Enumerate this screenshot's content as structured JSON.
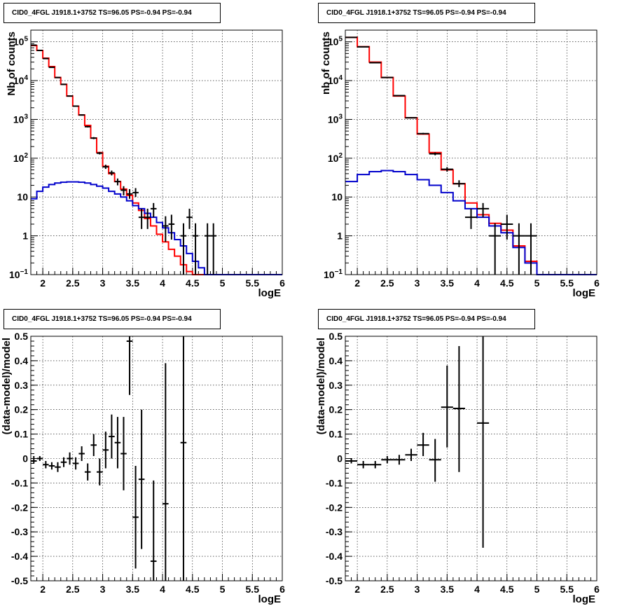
{
  "colors": {
    "data": "#000000",
    "total_model": "#ff0000",
    "source_model": "#0000cc",
    "grid": "#000000",
    "frame": "#000000"
  },
  "chart_data": [
    {
      "type": "line",
      "panel": "top-left",
      "title": "CID0_4FGL J1918.1+3752 TS=96.05 PS=-0.94 PS=-0.94",
      "xlabel": "logE",
      "ylabel": "Nb of counts",
      "xlim": [
        1.8,
        6
      ],
      "ylim": [
        0.1,
        200000
      ],
      "log_y": true,
      "grid": true,
      "x_ticks": [
        "2",
        "2.5",
        "3",
        "3.5",
        "4",
        "4.5",
        "5",
        "5.5",
        "6"
      ],
      "y_ticks": [
        "10^-1",
        "1",
        "10",
        "10^2",
        "10^3",
        "10^4",
        "10^5"
      ],
      "bin_edges": [
        1.8,
        1.9,
        2.0,
        2.1,
        2.2,
        2.3,
        2.4,
        2.5,
        2.6,
        2.7,
        2.8,
        2.9,
        3.0,
        3.1,
        3.2,
        3.3,
        3.4,
        3.5,
        3.6,
        3.7,
        3.8,
        3.9,
        4.0,
        4.1,
        4.2,
        4.3,
        4.4,
        4.5,
        4.6,
        4.7,
        4.8,
        4.9,
        5.0,
        5.1,
        5.2,
        5.3,
        5.4,
        5.5,
        5.6,
        5.7,
        5.8,
        5.9,
        6.0
      ],
      "series": [
        {
          "kind": "step",
          "color": "total_model",
          "values": [
            80000,
            60000,
            38000,
            23000,
            12000,
            8000,
            4000,
            2200,
            1300,
            700,
            330,
            140,
            62,
            40,
            25,
            16,
            11,
            7,
            4.5,
            2.8,
            1.8,
            1.1,
            0.7,
            0.45,
            0.3,
            0.18,
            0.12,
            0.1,
            0.1,
            0.1,
            0.1,
            0.1,
            0.1,
            0.1,
            0.1,
            0.1,
            0.1,
            0.1,
            0.1,
            0.1,
            0.1,
            0.1
          ]
        },
        {
          "kind": "step",
          "color": "source_model",
          "values": [
            9,
            14,
            18,
            21,
            23,
            24,
            24.5,
            24.5,
            24,
            23,
            21,
            19,
            17,
            14,
            12,
            10,
            8,
            6,
            5,
            3.8,
            3,
            2.2,
            1.6,
            1.2,
            0.8,
            0.55,
            0.35,
            0.22,
            0.15,
            0.1,
            0.1,
            0.1,
            0.1,
            0.1,
            0.1,
            0.1,
            0.1,
            0.1,
            0.1,
            0.1,
            0.1,
            0.1
          ]
        },
        {
          "kind": "errorbar",
          "color": "data",
          "points": [
            {
              "x": 1.85,
              "y": 82000,
              "lo": 81000,
              "hi": 83000
            },
            {
              "x": 1.95,
              "y": 60000,
              "lo": 59000,
              "hi": 61000
            },
            {
              "x": 2.05,
              "y": 37000,
              "lo": 36000,
              "hi": 38000
            },
            {
              "x": 2.15,
              "y": 22000,
              "lo": 21500,
              "hi": 22500
            },
            {
              "x": 2.25,
              "y": 12000,
              "lo": 11700,
              "hi": 12300
            },
            {
              "x": 2.35,
              "y": 8000,
              "lo": 7800,
              "hi": 8200
            },
            {
              "x": 2.45,
              "y": 4000,
              "lo": 3900,
              "hi": 4100
            },
            {
              "x": 2.55,
              "y": 2200,
              "lo": 2150,
              "hi": 2250
            },
            {
              "x": 2.65,
              "y": 1300,
              "lo": 1250,
              "hi": 1350
            },
            {
              "x": 2.75,
              "y": 650,
              "lo": 620,
              "hi": 680
            },
            {
              "x": 2.85,
              "y": 330,
              "lo": 310,
              "hi": 350
            },
            {
              "x": 2.95,
              "y": 135,
              "lo": 125,
              "hi": 145
            },
            {
              "x": 3.05,
              "y": 60,
              "lo": 53,
              "hi": 68
            },
            {
              "x": 3.15,
              "y": 42,
              "lo": 36,
              "hi": 48
            },
            {
              "x": 3.25,
              "y": 25,
              "lo": 20,
              "hi": 30
            },
            {
              "x": 3.35,
              "y": 15,
              "lo": 11,
              "hi": 19
            },
            {
              "x": 3.45,
              "y": 12,
              "lo": 9,
              "hi": 16
            },
            {
              "x": 3.55,
              "y": 13,
              "lo": 10,
              "hi": 17
            },
            {
              "x": 3.65,
              "y": 3,
              "lo": 1.5,
              "hi": 5
            },
            {
              "x": 3.75,
              "y": 3,
              "lo": 1.5,
              "hi": 5
            },
            {
              "x": 3.85,
              "y": 5,
              "lo": 3,
              "hi": 7
            },
            {
              "x": 4.05,
              "y": 1.8,
              "lo": 0.7,
              "hi": 3.2
            },
            {
              "x": 4.15,
              "y": 2,
              "lo": 0.8,
              "hi": 3.5
            },
            {
              "x": 4.35,
              "y": 1,
              "lo": 0.1,
              "hi": 2.1
            },
            {
              "x": 4.45,
              "y": 3,
              "lo": 1.5,
              "hi": 5
            },
            {
              "x": 4.55,
              "y": 1,
              "lo": 0.1,
              "hi": 2.1
            },
            {
              "x": 4.75,
              "y": 1,
              "lo": 0.1,
              "hi": 2.1
            },
            {
              "x": 4.85,
              "y": 1,
              "lo": 0.1,
              "hi": 2.1
            }
          ]
        }
      ]
    },
    {
      "type": "line",
      "panel": "top-right",
      "title": "CID0_4FGL J1918.1+3752 TS=96.05 PS=-0.94 PS=-0.94",
      "xlabel": "logE",
      "ylabel": "nb of counts",
      "xlim": [
        1.8,
        6
      ],
      "ylim": [
        0.1,
        200000
      ],
      "log_y": true,
      "grid": true,
      "x_ticks": [
        "2",
        "2.5",
        "3",
        "3.5",
        "4",
        "4.5",
        "5",
        "5.5",
        "6"
      ],
      "y_ticks": [
        "10^-1",
        "1",
        "10",
        "10^2",
        "10^3",
        "10^4",
        "10^5"
      ],
      "bin_edges": [
        1.8,
        2.0,
        2.2,
        2.4,
        2.6,
        2.8,
        3.0,
        3.2,
        3.4,
        3.6,
        3.8,
        4.0,
        4.2,
        4.4,
        4.6,
        4.8,
        5.0,
        5.2,
        5.4,
        5.6,
        5.8,
        6.0
      ],
      "series": [
        {
          "kind": "step",
          "color": "total_model",
          "values": [
            130000,
            75000,
            30000,
            12000,
            4000,
            1100,
            420,
            140,
            50,
            22,
            7,
            3.5,
            2.1,
            1.4,
            0.55,
            0.22,
            0.1,
            0.1,
            0.1,
            0.1,
            0.1
          ]
        },
        {
          "kind": "step",
          "color": "source_model",
          "values": [
            25,
            38,
            45,
            48,
            45,
            38,
            28,
            20,
            13,
            8,
            5,
            3,
            1.8,
            1.2,
            0.5,
            0.2,
            0.1,
            0.1,
            0.1,
            0.1,
            0.1
          ]
        },
        {
          "kind": "errorbar",
          "color": "data",
          "points": [
            {
              "x": 1.9,
              "y": 130000,
              "lo": 129000,
              "hi": 131000
            },
            {
              "x": 2.1,
              "y": 74000,
              "lo": 73500,
              "hi": 74500
            },
            {
              "x": 2.3,
              "y": 29000,
              "lo": 28700,
              "hi": 29300
            },
            {
              "x": 2.5,
              "y": 12000,
              "lo": 11800,
              "hi": 12200
            },
            {
              "x": 2.7,
              "y": 4100,
              "lo": 4000,
              "hi": 4200
            },
            {
              "x": 2.9,
              "y": 1100,
              "lo": 1060,
              "hi": 1140
            },
            {
              "x": 3.1,
              "y": 430,
              "lo": 410,
              "hi": 450
            },
            {
              "x": 3.3,
              "y": 130,
              "lo": 119,
              "hi": 141
            },
            {
              "x": 3.5,
              "y": 52,
              "lo": 45,
              "hi": 59
            },
            {
              "x": 3.7,
              "y": 22,
              "lo": 18,
              "hi": 27
            },
            {
              "x": 3.9,
              "y": 3,
              "lo": 1.5,
              "hi": 5
            },
            {
              "x": 4.1,
              "y": 5,
              "lo": 3,
              "hi": 7
            },
            {
              "x": 4.3,
              "y": 1,
              "lo": 0.1,
              "hi": 2.1
            },
            {
              "x": 4.5,
              "y": 2,
              "lo": 0.8,
              "hi": 3.5
            },
            {
              "x": 4.7,
              "y": 1,
              "lo": 0.1,
              "hi": 2.1
            },
            {
              "x": 4.9,
              "y": 1,
              "lo": 0.1,
              "hi": 2.1
            }
          ]
        }
      ]
    },
    {
      "type": "scatter",
      "panel": "bottom-left",
      "title": "CID0_4FGL J1918.1+3752 TS=96.05 PS=-0.94 PS=-0.94",
      "xlabel": "logE",
      "ylabel": "(data-model)/model",
      "xlim": [
        1.8,
        6
      ],
      "ylim": [
        -0.5,
        0.5
      ],
      "log_y": false,
      "grid": true,
      "x_ticks": [
        "2",
        "2.5",
        "3",
        "3.5",
        "4",
        "4.5",
        "5",
        "5.5",
        "6"
      ],
      "y_ticks": [
        "-0.5",
        "-0.4",
        "-0.3",
        "-0.2",
        "-0.1",
        "0",
        "0.1",
        "0.2",
        "0.3",
        "0.4",
        "0.5"
      ],
      "series": [
        {
          "kind": "errorbar",
          "color": "data",
          "half_width": 0.05,
          "points": [
            {
              "x": 1.85,
              "y": -0.01,
              "lo": -0.02,
              "hi": 0.01
            },
            {
              "x": 1.95,
              "y": 0.0,
              "lo": -0.01,
              "hi": 0.01
            },
            {
              "x": 2.05,
              "y": -0.025,
              "lo": -0.04,
              "hi": -0.01
            },
            {
              "x": 2.15,
              "y": -0.03,
              "lo": -0.045,
              "hi": -0.015
            },
            {
              "x": 2.25,
              "y": -0.035,
              "lo": -0.055,
              "hi": -0.015
            },
            {
              "x": 2.35,
              "y": -0.015,
              "lo": -0.035,
              "hi": 0.005
            },
            {
              "x": 2.45,
              "y": 0.0,
              "lo": -0.025,
              "hi": 0.025
            },
            {
              "x": 2.55,
              "y": -0.02,
              "lo": -0.045,
              "hi": 0.005
            },
            {
              "x": 2.65,
              "y": 0.02,
              "lo": -0.01,
              "hi": 0.05
            },
            {
              "x": 2.75,
              "y": -0.055,
              "lo": -0.09,
              "hi": -0.02
            },
            {
              "x": 2.85,
              "y": 0.055,
              "lo": 0.01,
              "hi": 0.1
            },
            {
              "x": 2.95,
              "y": -0.055,
              "lo": -0.11,
              "hi": 0.0
            },
            {
              "x": 3.05,
              "y": 0.035,
              "lo": -0.04,
              "hi": 0.11
            },
            {
              "x": 3.15,
              "y": 0.09,
              "lo": 0.0,
              "hi": 0.18
            },
            {
              "x": 3.25,
              "y": 0.065,
              "lo": -0.04,
              "hi": 0.17
            },
            {
              "x": 3.35,
              "y": 0.02,
              "lo": -0.13,
              "hi": 0.17
            },
            {
              "x": 3.45,
              "y": 0.48,
              "lo": 0.26,
              "hi": 0.5
            },
            {
              "x": 3.55,
              "y": -0.24,
              "lo": -0.45,
              "hi": -0.03
            },
            {
              "x": 3.65,
              "y": -0.085,
              "lo": -0.37,
              "hi": 0.2
            },
            {
              "x": 3.85,
              "y": -0.42,
              "lo": -0.5,
              "hi": -0.09
            },
            {
              "x": 4.05,
              "y": -0.185,
              "lo": -0.5,
              "hi": 0.39
            },
            {
              "x": 4.35,
              "y": 0.065,
              "lo": -0.5,
              "hi": 0.5
            }
          ]
        }
      ]
    },
    {
      "type": "scatter",
      "panel": "bottom-right",
      "title": "CID0_4FGL J1918.1+3752 TS=96.05 PS=-0.94 PS=-0.94",
      "xlabel": "logE",
      "ylabel": "(data-model)/model",
      "xlim": [
        1.8,
        6
      ],
      "ylim": [
        -0.5,
        0.5
      ],
      "log_y": false,
      "grid": true,
      "x_ticks": [
        "2",
        "2.5",
        "3",
        "3.5",
        "4",
        "4.5",
        "5",
        "5.5",
        "6"
      ],
      "y_ticks": [
        "-0.5",
        "-0.4",
        "-0.3",
        "-0.2",
        "-0.1",
        "0",
        "0.1",
        "0.2",
        "0.3",
        "0.4",
        "0.5"
      ],
      "series": [
        {
          "kind": "errorbar",
          "color": "data",
          "half_width": 0.1,
          "points": [
            {
              "x": 1.9,
              "y": -0.01,
              "lo": -0.02,
              "hi": 0.0
            },
            {
              "x": 2.1,
              "y": -0.025,
              "lo": -0.04,
              "hi": -0.01
            },
            {
              "x": 2.3,
              "y": -0.025,
              "lo": -0.04,
              "hi": -0.01
            },
            {
              "x": 2.5,
              "y": -0.005,
              "lo": -0.02,
              "hi": 0.01
            },
            {
              "x": 2.7,
              "y": -0.005,
              "lo": -0.025,
              "hi": 0.015
            },
            {
              "x": 2.9,
              "y": 0.015,
              "lo": -0.01,
              "hi": 0.04
            },
            {
              "x": 3.1,
              "y": 0.055,
              "lo": 0.01,
              "hi": 0.105
            },
            {
              "x": 3.3,
              "y": -0.005,
              "lo": -0.095,
              "hi": 0.08
            },
            {
              "x": 3.5,
              "y": 0.21,
              "lo": 0.045,
              "hi": 0.38
            },
            {
              "x": 3.7,
              "y": 0.205,
              "lo": -0.055,
              "hi": 0.46
            },
            {
              "x": 4.1,
              "y": 0.145,
              "lo": -0.365,
              "hi": 0.5
            }
          ]
        }
      ]
    }
  ]
}
